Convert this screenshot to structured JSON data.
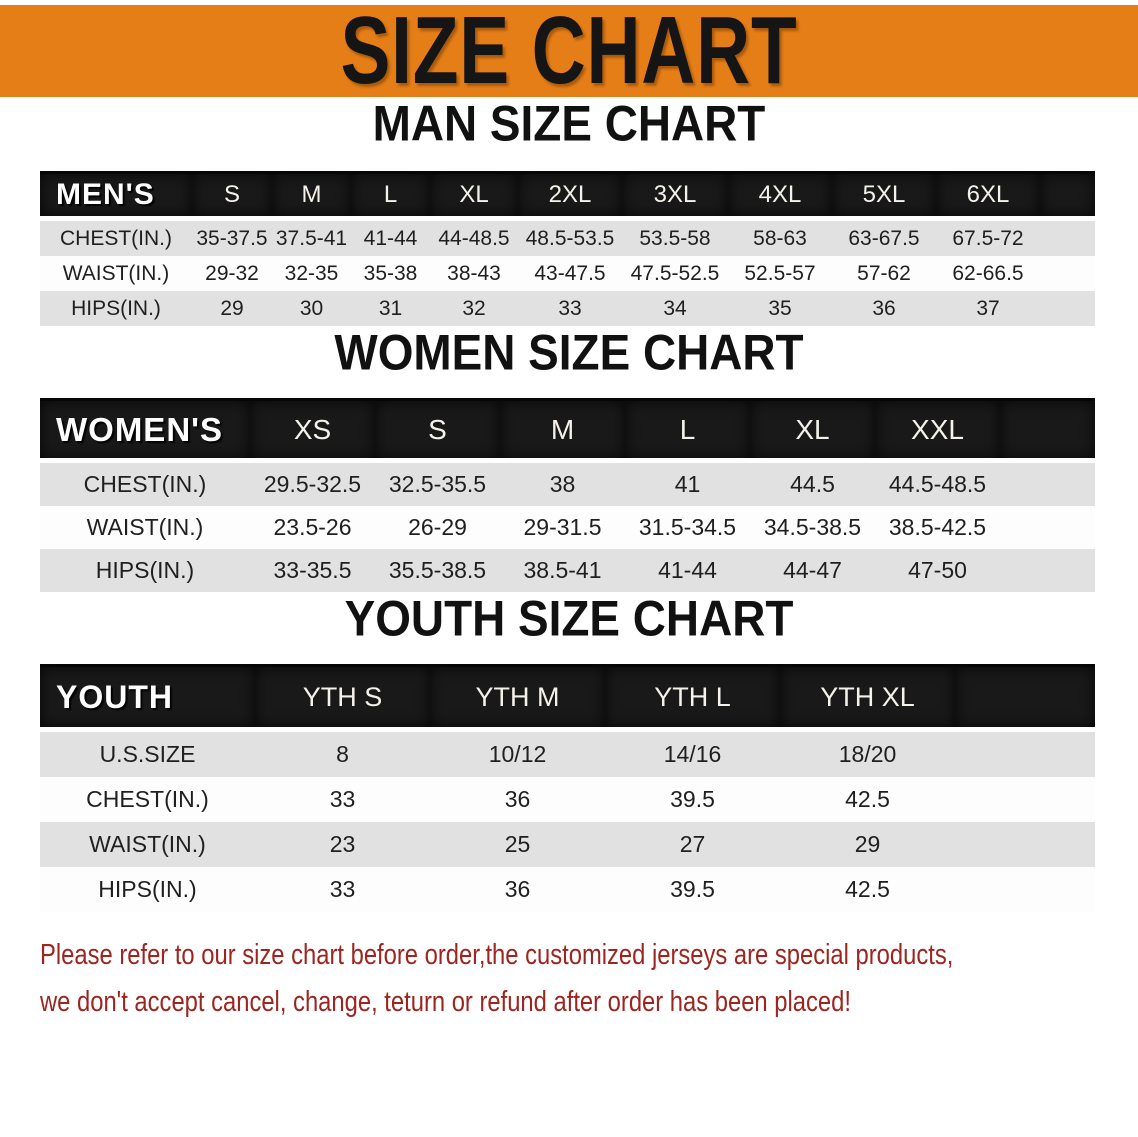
{
  "banner": {
    "title": "SIZE CHART",
    "bg_color": "#E67E18",
    "text_color": "#151515"
  },
  "sections": [
    {
      "id": "men",
      "heading": "MAN SIZE CHART",
      "corner_label": "MEN'S",
      "columns": [
        "S",
        "M",
        "L",
        "XL",
        "2XL",
        "3XL",
        "4XL",
        "5XL",
        "6XL"
      ],
      "rows": [
        {
          "label": "CHEST(IN.)",
          "values": [
            "35-37.5",
            "37.5-41",
            "41-44",
            "44-48.5",
            "48.5-53.5",
            "53.5-58",
            "58-63",
            "63-67.5",
            "67.5-72"
          ]
        },
        {
          "label": "WAIST(IN.)",
          "values": [
            "29-32",
            "32-35",
            "35-38",
            "38-43",
            "43-47.5",
            "47.5-52.5",
            "52.5-57",
            "57-62",
            "62-66.5"
          ]
        },
        {
          "label": "HIPS(IN.)",
          "values": [
            "29",
            "30",
            "31",
            "32",
            "33",
            "34",
            "35",
            "36",
            "37"
          ]
        }
      ]
    },
    {
      "id": "women",
      "heading": "WOMEN SIZE CHART",
      "corner_label": "WOMEN'S",
      "columns": [
        "XS",
        "S",
        "M",
        "L",
        "XL",
        "XXL"
      ],
      "rows": [
        {
          "label": "CHEST(IN.)",
          "values": [
            "29.5-32.5",
            "32.5-35.5",
            "38",
            "41",
            "44.5",
            "44.5-48.5"
          ]
        },
        {
          "label": "WAIST(IN.)",
          "values": [
            "23.5-26",
            "26-29",
            "29-31.5",
            "31.5-34.5",
            "34.5-38.5",
            "38.5-42.5"
          ]
        },
        {
          "label": "HIPS(IN.)",
          "values": [
            "33-35.5",
            "35.5-38.5",
            "38.5-41",
            "41-44",
            "44-47",
            "47-50"
          ]
        }
      ]
    },
    {
      "id": "youth",
      "heading": "YOUTH SIZE CHART",
      "corner_label": "YOUTH",
      "columns": [
        "YTH S",
        "YTH M",
        "YTH L",
        "YTH XL"
      ],
      "rows": [
        {
          "label": "U.S.SIZE",
          "values": [
            "8",
            "10/12",
            "14/16",
            "18/20"
          ]
        },
        {
          "label": "CHEST(IN.)",
          "values": [
            "33",
            "36",
            "39.5",
            "42.5"
          ]
        },
        {
          "label": "WAIST(IN.)",
          "values": [
            "23",
            "25",
            "27",
            "29"
          ]
        },
        {
          "label": "HIPS(IN.)",
          "values": [
            "33",
            "36",
            "39.5",
            "42.5"
          ]
        }
      ]
    }
  ],
  "disclaimer": {
    "color": "#9D2520",
    "lines": [
      "Please refer to our size chart before order,the customized jerseys are special products,",
      "we don't accept cancel, change, teturn or refund after order has been placed!"
    ]
  }
}
